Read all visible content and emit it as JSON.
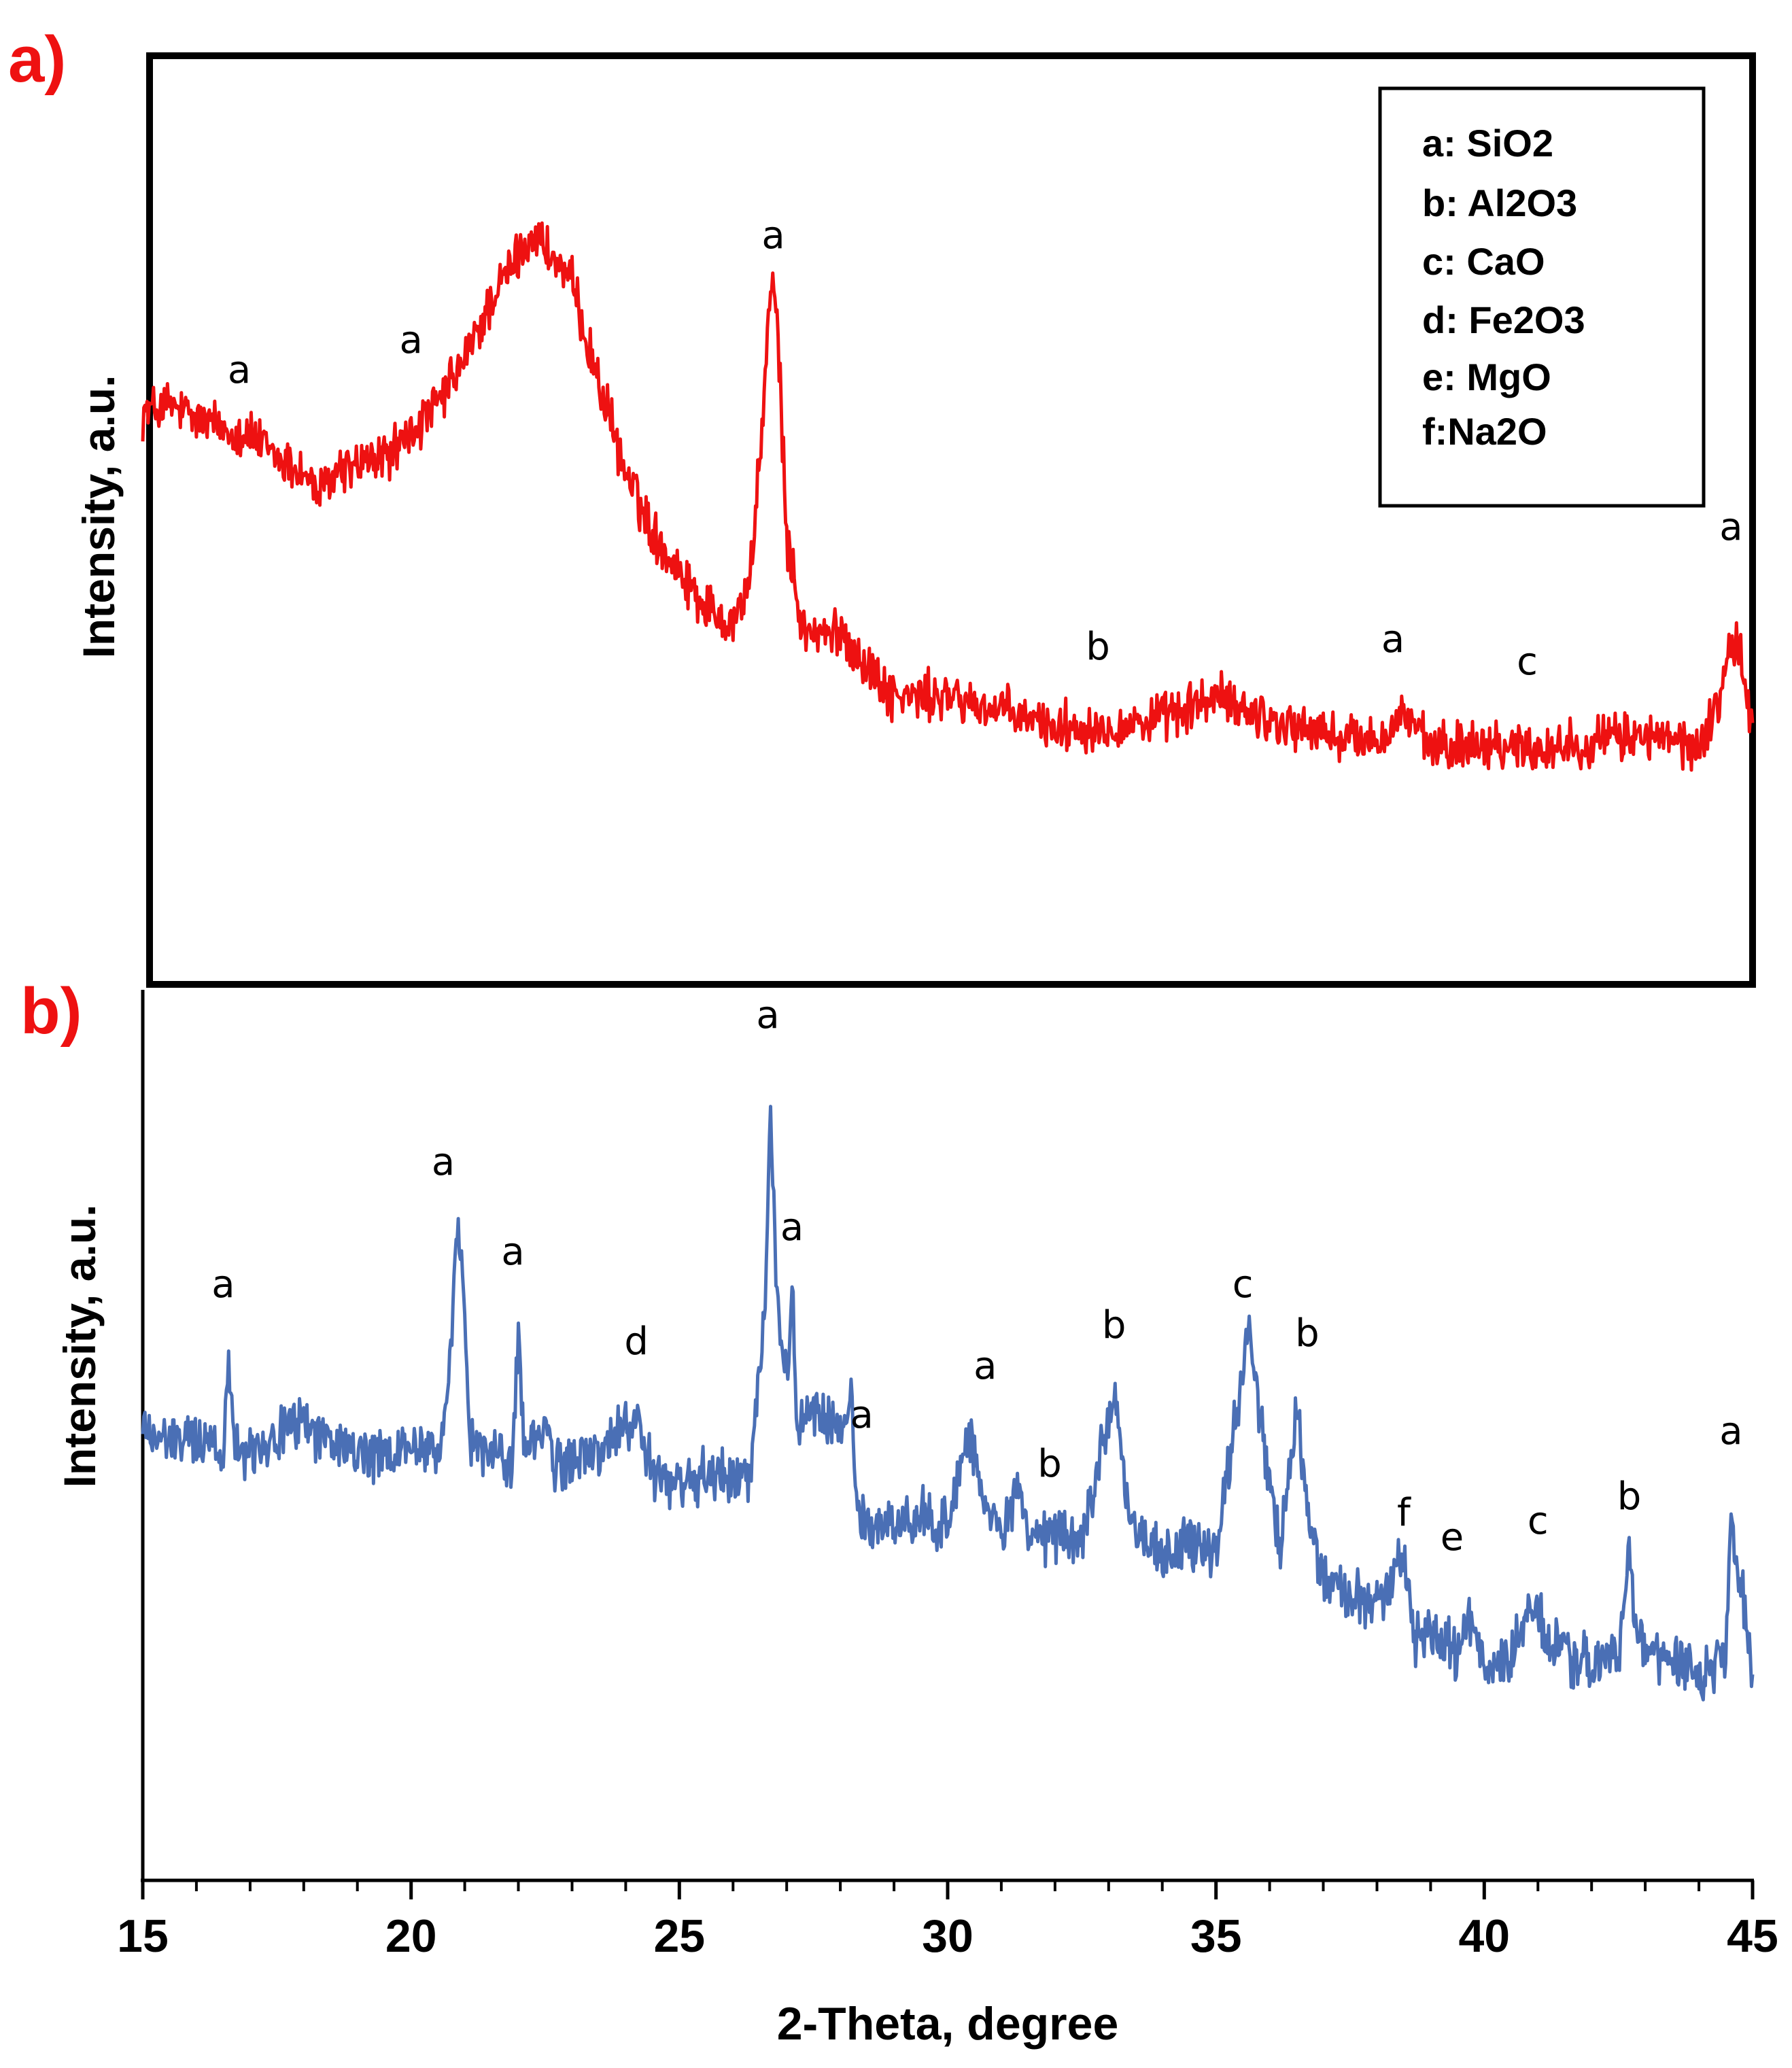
{
  "chart_data": [
    {
      "type": "line",
      "panel_label": "a)",
      "ylabel": "Intensity, a.u.",
      "xlabel": "",
      "xlim": [
        15,
        45
      ],
      "ylim": [
        0,
        100
      ],
      "color": "#ee1111",
      "legend": {
        "placement": "top-right",
        "entries": [
          "a: SiO2",
          "b: Al2O3",
          "c: CaO",
          "d: Fe2O3",
          "e: MgO",
          "f:Na2O"
        ]
      },
      "series": [
        {
          "name": "a",
          "x": [
            15.0,
            15.5,
            16.0,
            16.5,
            17.0,
            17.5,
            18.0,
            18.3,
            18.6,
            19.0,
            19.5,
            20.0,
            20.5,
            21.0,
            21.5,
            22.0,
            22.3,
            22.6,
            23.0,
            23.5,
            24.0,
            24.5,
            25.0,
            25.5,
            26.0,
            26.3,
            26.5,
            26.65,
            26.75,
            26.85,
            27.0,
            27.3,
            27.8,
            28.0,
            28.5,
            29.0,
            30.0,
            31.0,
            32.0,
            33.0,
            34.0,
            35.0,
            36.0,
            37.0,
            38.0,
            38.3,
            38.5,
            39.0,
            40.0,
            41.0,
            42.0,
            43.0,
            44.0,
            44.3,
            44.5,
            44.7,
            45.0
          ],
          "y": [
            63,
            64,
            62,
            61,
            60,
            57,
            55,
            52,
            55,
            56,
            57,
            60,
            64,
            70,
            78,
            84,
            87,
            84,
            80,
            67,
            55,
            47,
            42,
            37,
            35,
            40,
            56,
            75,
            80,
            72,
            46,
            34,
            33,
            34,
            29,
            25,
            25,
            23,
            21,
            21,
            22,
            25,
            22,
            20,
            19,
            21,
            23,
            18,
            19,
            18,
            19,
            20,
            18,
            23,
            29,
            33,
            21
          ]
        }
      ],
      "peak_labels": [
        {
          "x": 16.8,
          "y": 67,
          "text": "a"
        },
        {
          "x": 20.0,
          "y": 71,
          "text": "a"
        },
        {
          "x": 26.75,
          "y": 85,
          "text": "a"
        },
        {
          "x": 32.8,
          "y": 30,
          "text": "b"
        },
        {
          "x": 38.3,
          "y": 31,
          "text": "a"
        },
        {
          "x": 40.8,
          "y": 28,
          "text": "c"
        },
        {
          "x": 44.6,
          "y": 46,
          "text": "a"
        }
      ]
    },
    {
      "type": "line",
      "panel_label": "b)",
      "ylabel": "Intensity, a.u.",
      "xlabel": "2-Theta, degree",
      "xlim": [
        15,
        45
      ],
      "ylim": [
        0,
        100
      ],
      "xticks": [
        15,
        20,
        25,
        30,
        35,
        40,
        45
      ],
      "color": "#4a6fb5",
      "series": [
        {
          "name": "b",
          "x": [
            15.0,
            15.5,
            16.0,
            16.5,
            16.6,
            16.7,
            16.9,
            17.5,
            18.0,
            18.5,
            19.0,
            19.5,
            20.0,
            20.5,
            20.7,
            20.85,
            20.95,
            21.1,
            21.5,
            21.9,
            22.0,
            22.1,
            22.5,
            22.7,
            23.0,
            23.5,
            24.0,
            24.2,
            24.5,
            25.0,
            25.5,
            26.0,
            26.3,
            26.6,
            26.7,
            26.8,
            27.0,
            27.1,
            27.2,
            27.5,
            28.0,
            28.2,
            28.3,
            28.5,
            29.0,
            29.5,
            30.0,
            30.4,
            30.7,
            31.0,
            31.3,
            31.5,
            32.0,
            32.5,
            33.0,
            33.1,
            33.4,
            34.0,
            34.5,
            35.0,
            35.5,
            35.6,
            35.8,
            36.2,
            36.5,
            36.7,
            37.0,
            37.5,
            38.0,
            38.5,
            38.7,
            39.0,
            39.5,
            39.7,
            40.0,
            40.5,
            40.9,
            41.2,
            41.5,
            42.0,
            42.5,
            42.7,
            42.9,
            43.5,
            44.0,
            44.5,
            44.6,
            44.8,
            45.0
          ],
          "y": [
            50,
            48,
            49,
            47,
            58,
            50,
            47,
            49,
            51,
            48,
            47,
            46,
            48,
            47,
            54,
            73,
            70,
            48,
            47,
            46,
            63,
            47,
            50,
            45,
            46,
            47,
            50,
            52,
            44,
            43,
            44,
            44,
            44,
            65,
            89,
            70,
            55,
            66,
            50,
            52,
            49,
            55,
            40,
            38,
            38,
            39,
            38,
            50,
            40,
            36,
            43,
            36,
            37,
            36,
            52,
            55,
            38,
            34,
            36,
            35,
            57,
            64,
            52,
            34,
            53,
            40,
            31,
            30,
            28,
            34,
            24,
            25,
            22,
            27,
            21,
            22,
            28,
            24,
            22,
            21,
            22,
            34,
            23,
            21,
            20,
            21,
            37,
            30,
            20
          ]
        }
      ],
      "peak_labels": [
        {
          "x": 16.5,
          "y": 66,
          "text": "a"
        },
        {
          "x": 20.6,
          "y": 81,
          "text": "a"
        },
        {
          "x": 21.9,
          "y": 70,
          "text": "a"
        },
        {
          "x": 24.2,
          "y": 59,
          "text": "d"
        },
        {
          "x": 26.65,
          "y": 99,
          "text": "a"
        },
        {
          "x": 27.1,
          "y": 73,
          "text": "a"
        },
        {
          "x": 28.4,
          "y": 50,
          "text": "a"
        },
        {
          "x": 30.7,
          "y": 56,
          "text": "a"
        },
        {
          "x": 31.9,
          "y": 44,
          "text": "b"
        },
        {
          "x": 33.1,
          "y": 61,
          "text": "b"
        },
        {
          "x": 35.5,
          "y": 66,
          "text": "c"
        },
        {
          "x": 36.7,
          "y": 60,
          "text": "b"
        },
        {
          "x": 38.5,
          "y": 38,
          "text": "f"
        },
        {
          "x": 39.4,
          "y": 35,
          "text": "e"
        },
        {
          "x": 41.0,
          "y": 37,
          "text": "c"
        },
        {
          "x": 42.7,
          "y": 40,
          "text": "b"
        },
        {
          "x": 44.6,
          "y": 48,
          "text": "a"
        }
      ]
    }
  ]
}
